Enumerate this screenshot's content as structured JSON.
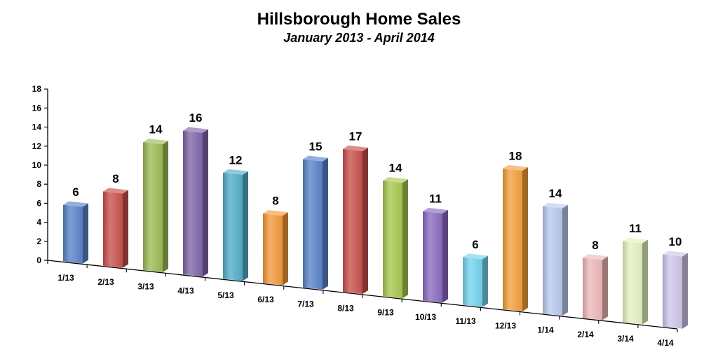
{
  "chart_data": {
    "type": "bar",
    "title": "Hillsborough Home Sales",
    "subtitle": "January 2013 - April 2014",
    "xlabel": "",
    "ylabel": "",
    "ylim": [
      0,
      18
    ],
    "yticks": [
      0,
      2,
      4,
      6,
      8,
      10,
      12,
      14,
      16,
      18
    ],
    "grid": false,
    "legend": "none",
    "categories": [
      "1/13",
      "2/13",
      "3/13",
      "4/13",
      "5/13",
      "6/13",
      "7/13",
      "8/13",
      "9/13",
      "10/13",
      "11/13",
      "12/13",
      "1/14",
      "2/14",
      "3/14",
      "4/14"
    ],
    "values": [
      6,
      8,
      14,
      16,
      12,
      8,
      15,
      17,
      14,
      11,
      6,
      18,
      14,
      8,
      11,
      10
    ],
    "colors": [
      "#5b82c8",
      "#c8504d",
      "#9cbb55",
      "#8066a8",
      "#52aec8",
      "#f39a3c",
      "#5b82c8",
      "#c8504d",
      "#a8c84e",
      "#8a6ac0",
      "#74d4ee",
      "#f3a03c",
      "#b8caee",
      "#eeb8b8",
      "#e4f2c0",
      "#cfc6ea"
    ]
  }
}
